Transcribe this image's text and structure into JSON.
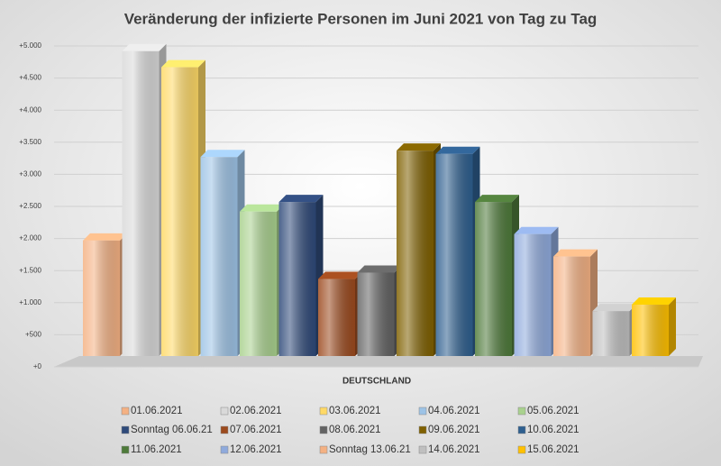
{
  "chart_data": {
    "type": "bar3d",
    "title": "Veränderung der infizierte Personen im Juni 2021 von Tag zu Tag",
    "categories": [
      "DEUTSCHLAND"
    ],
    "series": [
      {
        "name": "01.06.2021",
        "color": "#f4b183",
        "values": [
          1800
        ]
      },
      {
        "name": "02.06.2021",
        "color": "#d9d9d9",
        "values": [
          4750
        ]
      },
      {
        "name": "03.06.2021",
        "color": "#ffd966",
        "values": [
          4500
        ]
      },
      {
        "name": "04.06.2021",
        "color": "#9dc3e6",
        "values": [
          3100
        ]
      },
      {
        "name": "05.06.2021",
        "color": "#a9d18e",
        "values": [
          2250
        ]
      },
      {
        "name": "Sonntag 06.06.21",
        "color": "#2f4a7a",
        "values": [
          2400
        ]
      },
      {
        "name": "07.06.2021",
        "color": "#9c4a1e",
        "values": [
          1200
        ]
      },
      {
        "name": "08.06.2021",
        "color": "#636363",
        "values": [
          1300
        ]
      },
      {
        "name": "09.06.2021",
        "color": "#7f6000",
        "values": [
          3200
        ]
      },
      {
        "name": "10.06.2021",
        "color": "#2e5f8f",
        "values": [
          3150
        ]
      },
      {
        "name": "11.06.2021",
        "color": "#4e7a3a",
        "values": [
          2400
        ]
      },
      {
        "name": "12.06.2021",
        "color": "#8faadc",
        "values": [
          1900
        ]
      },
      {
        "name": "Sonntag 13.06.21",
        "color": "#f4b183",
        "values": [
          1550
        ]
      },
      {
        "name": "14.06.2021",
        "color": "#bfbfbf",
        "values": [
          700
        ]
      },
      {
        "name": "15.06.2021",
        "color": "#ffc000",
        "values": [
          800
        ]
      }
    ],
    "ylim": [
      0,
      5000
    ],
    "yticks": [
      {
        "value": 0,
        "label": "+0"
      },
      {
        "value": 500,
        "label": "+500"
      },
      {
        "value": 1000,
        "label": "+1.000"
      },
      {
        "value": 1500,
        "label": "+1.500"
      },
      {
        "value": 2000,
        "label": "+2.000"
      },
      {
        "value": 2500,
        "label": "+2.500"
      },
      {
        "value": 3000,
        "label": "+3.000"
      },
      {
        "value": 3500,
        "label": "+3.500"
      },
      {
        "value": 4000,
        "label": "+4.000"
      },
      {
        "value": 4500,
        "label": "+4.500"
      },
      {
        "value": 5000,
        "label": "+5.000"
      }
    ],
    "grid": true
  }
}
